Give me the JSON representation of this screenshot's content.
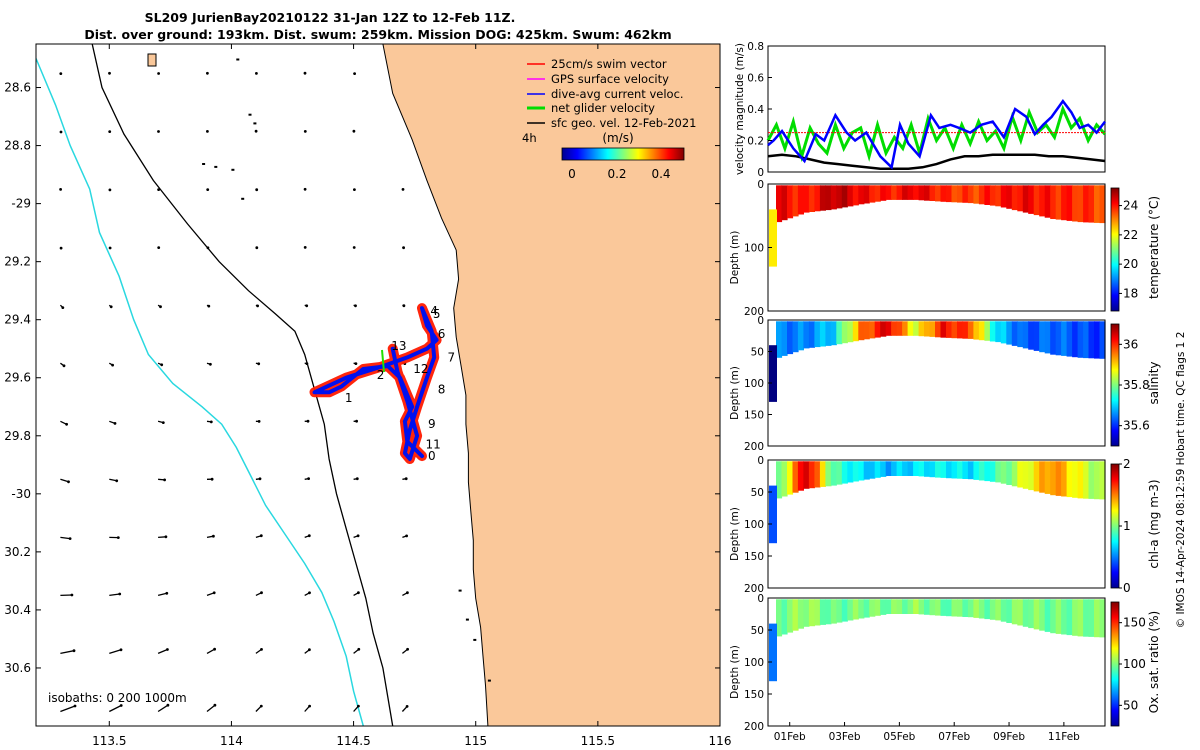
{
  "title": {
    "line1": "SL209 JurienBay20210122 31-Jan 12Z to 12-Feb 11Z.",
    "line2": "Dist. over ground: 193km. Dist. swum: 259km. Mission DOG: 425km. Swum: 462km"
  },
  "colors": {
    "land": "#fac89a",
    "isobath_shallow": "#2ad8e0",
    "isobath": "#000000",
    "track_red": "#ff1a00",
    "track_blue": "#0010ee",
    "net_green": "#22e000",
    "gps_magenta": "#ff00ff"
  },
  "footer": "© IMOS 14-Apr-2024 08:12:59 Hobart time. QC flags 1  2",
  "chart_data": [
    {
      "id": "map",
      "type": "scatter",
      "title": "Glider track map with surface geostrophic velocity vectors",
      "xlim": [
        113.2,
        116.0
      ],
      "ylim": [
        -30.8,
        -28.45
      ],
      "x_ticks": [
        113.5,
        114,
        114.5,
        115,
        115.5,
        116
      ],
      "x_tick_labels": [
        "113.5",
        "114",
        "114.5",
        "115",
        "115.5",
        "116"
      ],
      "y_ticks": [
        -28.6,
        -28.8,
        -29,
        -29.2,
        -29.4,
        -29.6,
        -29.8,
        -30,
        -30.2,
        -30.4,
        -30.6
      ],
      "y_tick_labels": [
        "28.6",
        "28.8",
        "-29",
        "29.2",
        "29.4",
        "29.6",
        "29.8",
        "-30",
        "30.2",
        "30.4",
        "30.6"
      ],
      "legend": {
        "position": "top-right",
        "entries": [
          {
            "label": "25cm/s swim vector",
            "color": "#ff0000"
          },
          {
            "label": "GPS surface velocity",
            "color": "#ff00ff"
          },
          {
            "label": "dive-avg current veloc.",
            "color": "#0000ff"
          },
          {
            "label": "net glider velocity",
            "color": "#00dd00"
          },
          {
            "label": "sfc geo. vel. 12-Feb-2021",
            "color": "#000000"
          }
        ],
        "scale_label": "4h"
      },
      "colorbar": {
        "title": "(m/s)",
        "range": [
          0,
          0.5
        ],
        "ticks": [
          0,
          0.2,
          0.4
        ],
        "tick_labels": [
          "0",
          "0.2",
          "0.4"
        ]
      },
      "isobath_label": "isobaths: 0   200  1000m",
      "coastline": [
        [
          114.62,
          -28.45
        ],
        [
          114.66,
          -28.62
        ],
        [
          114.74,
          -28.78
        ],
        [
          114.8,
          -28.92
        ],
        [
          114.86,
          -29.05
        ],
        [
          114.92,
          -29.16
        ],
        [
          114.93,
          -29.26
        ],
        [
          114.91,
          -29.36
        ],
        [
          114.92,
          -29.46
        ],
        [
          114.94,
          -29.56
        ],
        [
          114.96,
          -29.66
        ],
        [
          114.96,
          -29.76
        ],
        [
          114.97,
          -29.86
        ],
        [
          114.97,
          -29.96
        ],
        [
          114.98,
          -30.06
        ],
        [
          114.99,
          -30.16
        ],
        [
          114.99,
          -30.26
        ],
        [
          115.0,
          -30.36
        ],
        [
          115.02,
          -30.46
        ],
        [
          115.03,
          -30.56
        ],
        [
          115.04,
          -30.66
        ],
        [
          115.05,
          -30.8
        ]
      ],
      "isobath_200": [
        [
          113.43,
          -28.45
        ],
        [
          113.47,
          -28.6
        ],
        [
          113.56,
          -28.76
        ],
        [
          113.68,
          -28.92
        ],
        [
          113.82,
          -29.07
        ],
        [
          113.95,
          -29.2
        ],
        [
          114.07,
          -29.3
        ],
        [
          114.18,
          -29.38
        ],
        [
          114.26,
          -29.44
        ],
        [
          114.3,
          -29.52
        ],
        [
          114.34,
          -29.64
        ],
        [
          114.38,
          -29.76
        ],
        [
          114.4,
          -29.88
        ],
        [
          114.43,
          -30.0
        ],
        [
          114.47,
          -30.12
        ],
        [
          114.51,
          -30.24
        ],
        [
          114.55,
          -30.36
        ],
        [
          114.58,
          -30.48
        ],
        [
          114.62,
          -30.6
        ],
        [
          114.64,
          -30.7
        ],
        [
          114.66,
          -30.8
        ]
      ],
      "isobath_1000": [
        [
          113.2,
          -28.5
        ],
        [
          113.28,
          -28.66
        ],
        [
          113.34,
          -28.8
        ],
        [
          113.42,
          -28.95
        ],
        [
          113.46,
          -29.1
        ],
        [
          113.54,
          -29.25
        ],
        [
          113.6,
          -29.4
        ],
        [
          113.66,
          -29.52
        ],
        [
          113.76,
          -29.62
        ],
        [
          113.88,
          -29.7
        ],
        [
          113.96,
          -29.76
        ],
        [
          114.02,
          -29.84
        ],
        [
          114.08,
          -29.94
        ],
        [
          114.14,
          -30.04
        ],
        [
          114.22,
          -30.14
        ],
        [
          114.3,
          -30.24
        ],
        [
          114.37,
          -30.34
        ],
        [
          114.42,
          -30.44
        ],
        [
          114.47,
          -30.56
        ],
        [
          114.5,
          -30.68
        ],
        [
          114.54,
          -30.8
        ]
      ],
      "track": [
        [
          114.78,
          -29.87
        ],
        [
          114.72,
          -29.82
        ],
        [
          114.71,
          -29.75
        ],
        [
          114.74,
          -29.7
        ],
        [
          114.69,
          -29.6
        ],
        [
          114.64,
          -29.56
        ],
        [
          114.54,
          -29.57
        ],
        [
          114.48,
          -29.61
        ],
        [
          114.45,
          -29.63
        ],
        [
          114.4,
          -29.65
        ],
        [
          114.34,
          -29.65
        ],
        [
          114.47,
          -29.6
        ],
        [
          114.62,
          -29.56
        ],
        [
          114.72,
          -29.53
        ],
        [
          114.8,
          -29.5
        ],
        [
          114.84,
          -29.47
        ],
        [
          114.8,
          -29.42
        ],
        [
          114.78,
          -29.36
        ],
        [
          114.82,
          -29.44
        ],
        [
          114.83,
          -29.53
        ],
        [
          114.8,
          -29.6
        ],
        [
          114.76,
          -29.7
        ],
        [
          114.73,
          -29.78
        ],
        [
          114.71,
          -29.86
        ],
        [
          114.73,
          -29.88
        ],
        [
          114.76,
          -29.8
        ],
        [
          114.72,
          -29.68
        ],
        [
          114.68,
          -29.58
        ],
        [
          114.66,
          -29.5
        ]
      ],
      "track_labels": [
        {
          "text": "0",
          "lon": 114.78,
          "lat": -29.87
        },
        {
          "text": "1",
          "lon": 114.44,
          "lat": -29.67
        },
        {
          "text": "2",
          "lon": 114.57,
          "lat": -29.59
        },
        {
          "text": "4",
          "lon": 114.79,
          "lat": -29.37
        },
        {
          "text": "5",
          "lon": 114.8,
          "lat": -29.38
        },
        {
          "text": "6",
          "lon": 114.82,
          "lat": -29.45
        },
        {
          "text": "7",
          "lon": 114.86,
          "lat": -29.53
        },
        {
          "text": "8",
          "lon": 114.82,
          "lat": -29.64
        },
        {
          "text": "9",
          "lon": 114.78,
          "lat": -29.76
        },
        {
          "text": "11",
          "lon": 114.77,
          "lat": -29.83
        },
        {
          "text": "12",
          "lon": 114.72,
          "lat": -29.57
        },
        {
          "text": "13",
          "lon": 114.63,
          "lat": -29.49
        }
      ]
    },
    {
      "id": "velocity",
      "type": "line",
      "ylabel": "velocity magnitude (m/s)",
      "ylim": [
        0,
        0.8
      ],
      "y_ticks": [
        0,
        0.2,
        0.4,
        0.6,
        0.8
      ],
      "xlim": [
        0,
        12
      ],
      "series": [
        {
          "name": "dive-avg current veloc.",
          "color": "#0000ff",
          "x": [
            0,
            0.2,
            0.5,
            0.9,
            1.3,
            1.7,
            2.0,
            2.4,
            2.8,
            3.1,
            3.5,
            4.0,
            4.4,
            4.7,
            5.0,
            5.4,
            5.8,
            6.1,
            6.5,
            6.8,
            7.2,
            7.6,
            8.0,
            8.4,
            8.8,
            9.2,
            9.5,
            9.8,
            10.1,
            10.5,
            10.8,
            11.1,
            11.4,
            11.7,
            12.0
          ],
          "y": [
            0.17,
            0.2,
            0.26,
            0.15,
            0.07,
            0.24,
            0.2,
            0.36,
            0.25,
            0.2,
            0.25,
            0.1,
            0.03,
            0.3,
            0.18,
            0.1,
            0.36,
            0.28,
            0.3,
            0.28,
            0.25,
            0.3,
            0.32,
            0.22,
            0.4,
            0.35,
            0.24,
            0.3,
            0.35,
            0.45,
            0.38,
            0.28,
            0.3,
            0.25,
            0.32
          ]
        },
        {
          "name": "net glider velocity",
          "color": "#00dd00",
          "x": [
            0,
            0.3,
            0.6,
            0.9,
            1.2,
            1.5,
            1.8,
            2.1,
            2.4,
            2.7,
            3.0,
            3.3,
            3.6,
            3.9,
            4.2,
            4.5,
            4.8,
            5.1,
            5.4,
            5.7,
            6.0,
            6.3,
            6.6,
            6.9,
            7.2,
            7.5,
            7.8,
            8.1,
            8.4,
            8.7,
            9.0,
            9.3,
            9.6,
            9.9,
            10.2,
            10.5,
            10.8,
            11.1,
            11.4,
            11.7,
            12.0
          ],
          "y": [
            0.2,
            0.3,
            0.15,
            0.32,
            0.1,
            0.28,
            0.18,
            0.12,
            0.3,
            0.15,
            0.25,
            0.28,
            0.1,
            0.3,
            0.12,
            0.22,
            0.15,
            0.3,
            0.12,
            0.34,
            0.2,
            0.28,
            0.15,
            0.3,
            0.18,
            0.32,
            0.2,
            0.26,
            0.15,
            0.35,
            0.2,
            0.38,
            0.25,
            0.3,
            0.22,
            0.4,
            0.28,
            0.34,
            0.2,
            0.3,
            0.24
          ]
        },
        {
          "name": "25cm/s swim vector",
          "color": "#ff0000",
          "x": [
            0,
            12
          ],
          "y": [
            0.25,
            0.25
          ]
        },
        {
          "name": "sfc geo. vel. 12-Feb-2021",
          "color": "#000000",
          "x": [
            0,
            0.5,
            1.0,
            1.5,
            2.0,
            2.5,
            3.0,
            3.5,
            4.0,
            4.5,
            5.0,
            5.5,
            6.0,
            6.5,
            7.0,
            7.5,
            8.0,
            8.5,
            9.0,
            9.5,
            10.0,
            10.5,
            11.0,
            11.5,
            12.0
          ],
          "y": [
            0.1,
            0.11,
            0.1,
            0.08,
            0.06,
            0.05,
            0.04,
            0.03,
            0.02,
            0.02,
            0.02,
            0.03,
            0.05,
            0.08,
            0.1,
            0.1,
            0.11,
            0.11,
            0.11,
            0.11,
            0.1,
            0.1,
            0.09,
            0.08,
            0.07
          ]
        }
      ]
    },
    {
      "id": "temperature",
      "type": "heatmap",
      "ylabel": "Depth (m)",
      "colorbar_label": "temperature (°C)",
      "y_ticks": [
        0,
        100,
        200
      ],
      "y_range": [
        0,
        200
      ],
      "colorbar_ticks": [
        18,
        20,
        22,
        24
      ],
      "colorbar_range": [
        16.8,
        25.2
      ],
      "x": [
        0,
        1,
        2,
        3,
        4,
        5,
        6,
        7,
        8,
        9,
        10,
        11,
        12
      ],
      "values": [
        24.3,
        23.8,
        24.8,
        24.2,
        23.9,
        24.4,
        23.8,
        23.6,
        24.0,
        24.2,
        23.9,
        23.8,
        23.5
      ],
      "bottom_depth": [
        60,
        45,
        40,
        32,
        25,
        25,
        28,
        30,
        35,
        45,
        55,
        60,
        62
      ]
    },
    {
      "id": "salinity",
      "type": "heatmap",
      "ylabel": "Depth (m)",
      "colorbar_label": "salinity",
      "y_ticks": [
        0,
        50,
        100,
        150,
        200
      ],
      "y_range": [
        0,
        200
      ],
      "colorbar_ticks": [
        35.6,
        35.8,
        36
      ],
      "colorbar_ticks_labels": [
        "35.6",
        "35.8",
        "36"
      ],
      "colorbar_range": [
        35.5,
        36.1
      ],
      "x": [
        0,
        1,
        2,
        3,
        4,
        5,
        6,
        7,
        8,
        9,
        10,
        11,
        12
      ],
      "values": [
        35.65,
        35.65,
        35.7,
        35.95,
        36.05,
        35.85,
        36.02,
        35.98,
        35.7,
        35.62,
        35.64,
        35.62,
        35.6
      ],
      "bottom_depth": [
        60,
        45,
        40,
        32,
        25,
        25,
        28,
        30,
        35,
        45,
        55,
        60,
        62
      ]
    },
    {
      "id": "chla",
      "type": "heatmap",
      "ylabel": "Depth (m)",
      "colorbar_label": "chl-a (mg m-3)",
      "y_ticks": [
        0,
        50,
        100,
        150,
        200
      ],
      "y_range": [
        0,
        200
      ],
      "colorbar_ticks": [
        0,
        1,
        2
      ],
      "colorbar_range": [
        0,
        2
      ],
      "x": [
        0,
        1,
        2,
        3,
        4,
        5,
        6,
        7,
        8,
        9,
        10,
        11,
        12
      ],
      "values": [
        0.9,
        1.9,
        0.9,
        0.7,
        0.6,
        0.7,
        0.75,
        0.7,
        0.9,
        1.2,
        1.5,
        1.2,
        1.0
      ],
      "bottom_depth": [
        60,
        45,
        40,
        32,
        25,
        25,
        28,
        30,
        35,
        45,
        55,
        60,
        62
      ]
    },
    {
      "id": "oxygen",
      "type": "heatmap",
      "ylabel": "Depth (m)",
      "colorbar_label": "Ox. sat. ratio (%)",
      "y_ticks": [
        0,
        50,
        100,
        150,
        200
      ],
      "y_range": [
        0,
        200
      ],
      "colorbar_ticks": [
        50,
        100,
        150
      ],
      "colorbar_range": [
        25,
        175
      ],
      "x": [
        0,
        1,
        2,
        3,
        4,
        5,
        6,
        7,
        8,
        9,
        10,
        11,
        12
      ],
      "values": [
        98,
        105,
        95,
        100,
        98,
        102,
        96,
        100,
        98,
        101,
        97,
        100,
        99
      ],
      "bottom_depth": [
        60,
        45,
        40,
        32,
        25,
        25,
        28,
        30,
        35,
        45,
        55,
        60,
        62
      ],
      "x_tick_labels": [
        "01Feb",
        "03Feb",
        "05Feb",
        "07Feb",
        "09Feb",
        "11Feb"
      ],
      "x_ticks": [
        0.5,
        2.5,
        4.5,
        6.5,
        8.5,
        10.5
      ]
    }
  ]
}
